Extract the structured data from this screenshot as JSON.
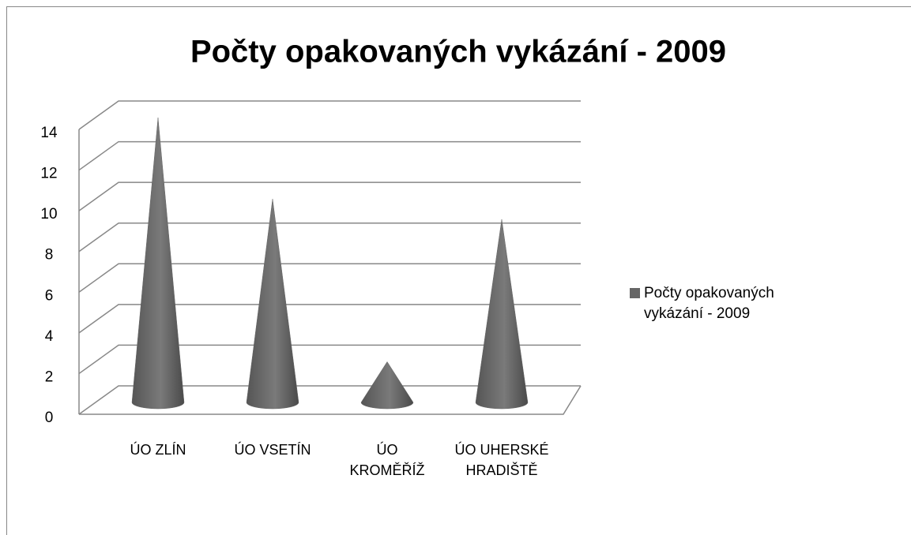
{
  "chart_data": {
    "type": "cone",
    "title": "Počty opakovaných vykázání - 2009",
    "categories": [
      "ÚO ZLÍN",
      "ÚO VSETÍN",
      "ÚO KROMĚŘÍŽ",
      "ÚO UHERSKÉ HRADIŠTĚ"
    ],
    "series": [
      {
        "name": "Počty opakovaných vykázání - 2009",
        "color": "#666666",
        "values": [
          14,
          10,
          2,
          9
        ]
      }
    ],
    "ylim": [
      0,
      14
    ],
    "yticks": [
      0,
      2,
      4,
      6,
      8,
      10,
      12,
      14
    ],
    "grid": true,
    "legend": "right"
  }
}
